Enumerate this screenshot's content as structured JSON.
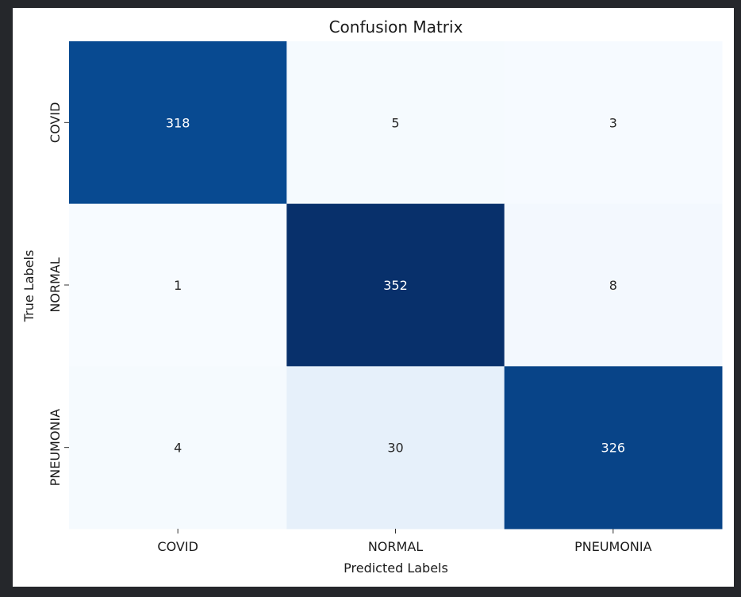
{
  "chart_data": {
    "type": "heatmap",
    "title": "Confusion Matrix",
    "xlabel": "Predicted Labels",
    "ylabel": "True Labels",
    "x_categories": [
      "COVID",
      "NORMAL",
      "PNEUMONIA"
    ],
    "y_categories": [
      "COVID",
      "NORMAL",
      "PNEUMONIA"
    ],
    "values": [
      [
        318,
        5,
        3
      ],
      [
        1,
        352,
        8
      ],
      [
        4,
        30,
        326
      ]
    ],
    "colormap": "Blues",
    "colorbar": false,
    "annotated": true
  },
  "colors": {
    "cmap_low": "#f7fbff",
    "cmap_mid": "#e3eef9",
    "cmap_high": "#08306b",
    "text_light": "#ffffff",
    "text_dark": "#262626"
  }
}
